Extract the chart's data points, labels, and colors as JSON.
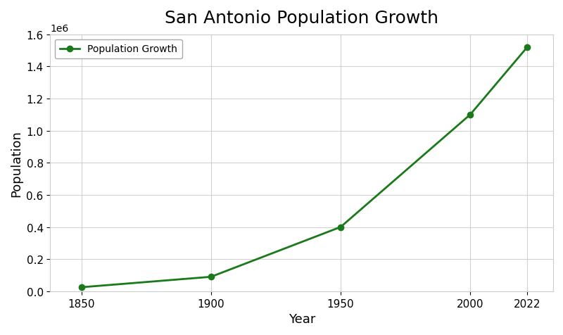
{
  "title": "San Antonio Population Growth",
  "xlabel": "Year",
  "ylabel": "Population",
  "years": [
    1850,
    1900,
    1950,
    2000,
    2022
  ],
  "population": [
    25000,
    90000,
    400000,
    1100000,
    1520000
  ],
  "line_color": "#1a7a1a",
  "marker": "o",
  "marker_color": "#1a7a1a",
  "marker_size": 6,
  "line_width": 2,
  "legend_label": "Population Growth",
  "ylim": [
    0,
    1600000
  ],
  "yticks": [
    0,
    200000,
    400000,
    600000,
    800000,
    1000000,
    1200000,
    1400000,
    1600000
  ],
  "background_color": "#ffffff",
  "grid_color": "#cccccc",
  "title_fontsize": 18,
  "label_fontsize": 13,
  "tick_fontsize": 11
}
